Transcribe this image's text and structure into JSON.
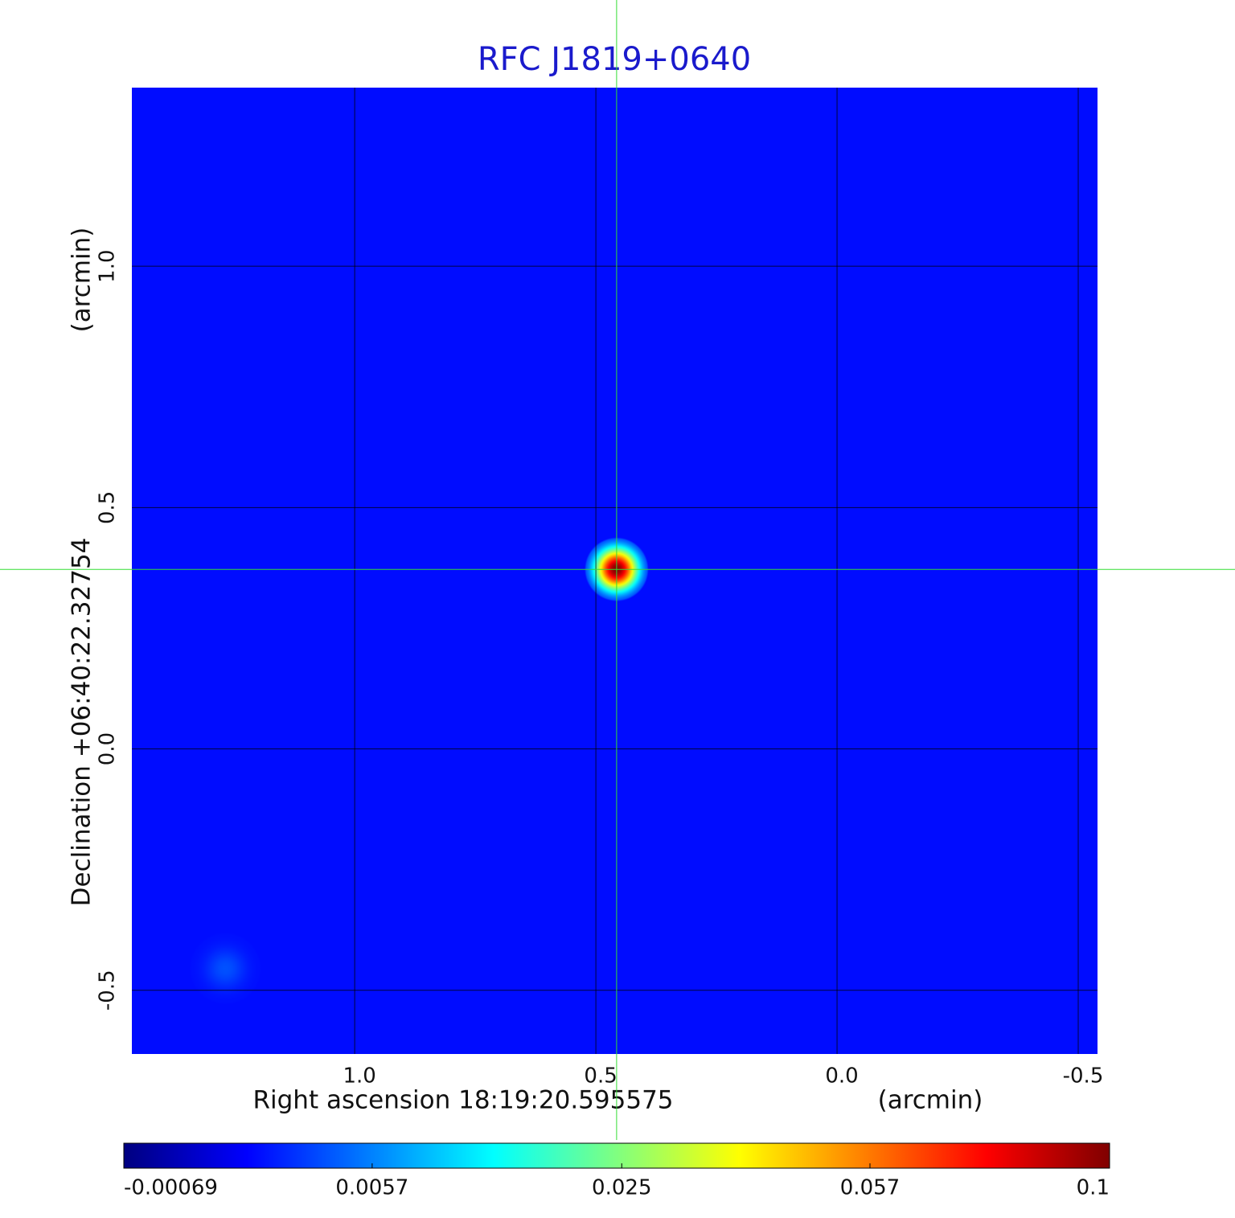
{
  "chart_data": {
    "type": "image",
    "title": "RFC J1819+0640",
    "xlabel": "Right ascension  18:19:20.595575",
    "xunit": "(arcmin)",
    "ylabel": "Declination  +06:40:22.32754",
    "yunit": "(arcmin)",
    "xlim": [
      1.462,
      -0.54
    ],
    "ylim": [
      -0.632,
      1.37
    ],
    "xticks": [
      {
        "value": 1.0,
        "label": "1.0"
      },
      0.5,
      {
        "value": 0.0,
        "label": "0.0"
      },
      -0.5
    ],
    "yticks": [
      {
        "value": 1.0,
        "label": "1.0"
      },
      0.5,
      {
        "value": 0.0,
        "label": "0.0"
      },
      -0.5
    ],
    "grid": true,
    "colormap": "jet",
    "color_stretch": "sqrt",
    "clim": [
      -0.00069,
      0.1
    ],
    "cticks": [
      -0.00069,
      0.0057,
      0.025,
      0.057,
      0.1
    ],
    "background_level": 0.0012,
    "crosshair": {
      "x": 0.457,
      "y": 0.372
    },
    "sources": [
      {
        "x": 0.457,
        "y": 0.372,
        "peak": 0.1
      },
      {
        "x": 1.268,
        "y": -0.455,
        "peak": 0.0035
      }
    ]
  }
}
